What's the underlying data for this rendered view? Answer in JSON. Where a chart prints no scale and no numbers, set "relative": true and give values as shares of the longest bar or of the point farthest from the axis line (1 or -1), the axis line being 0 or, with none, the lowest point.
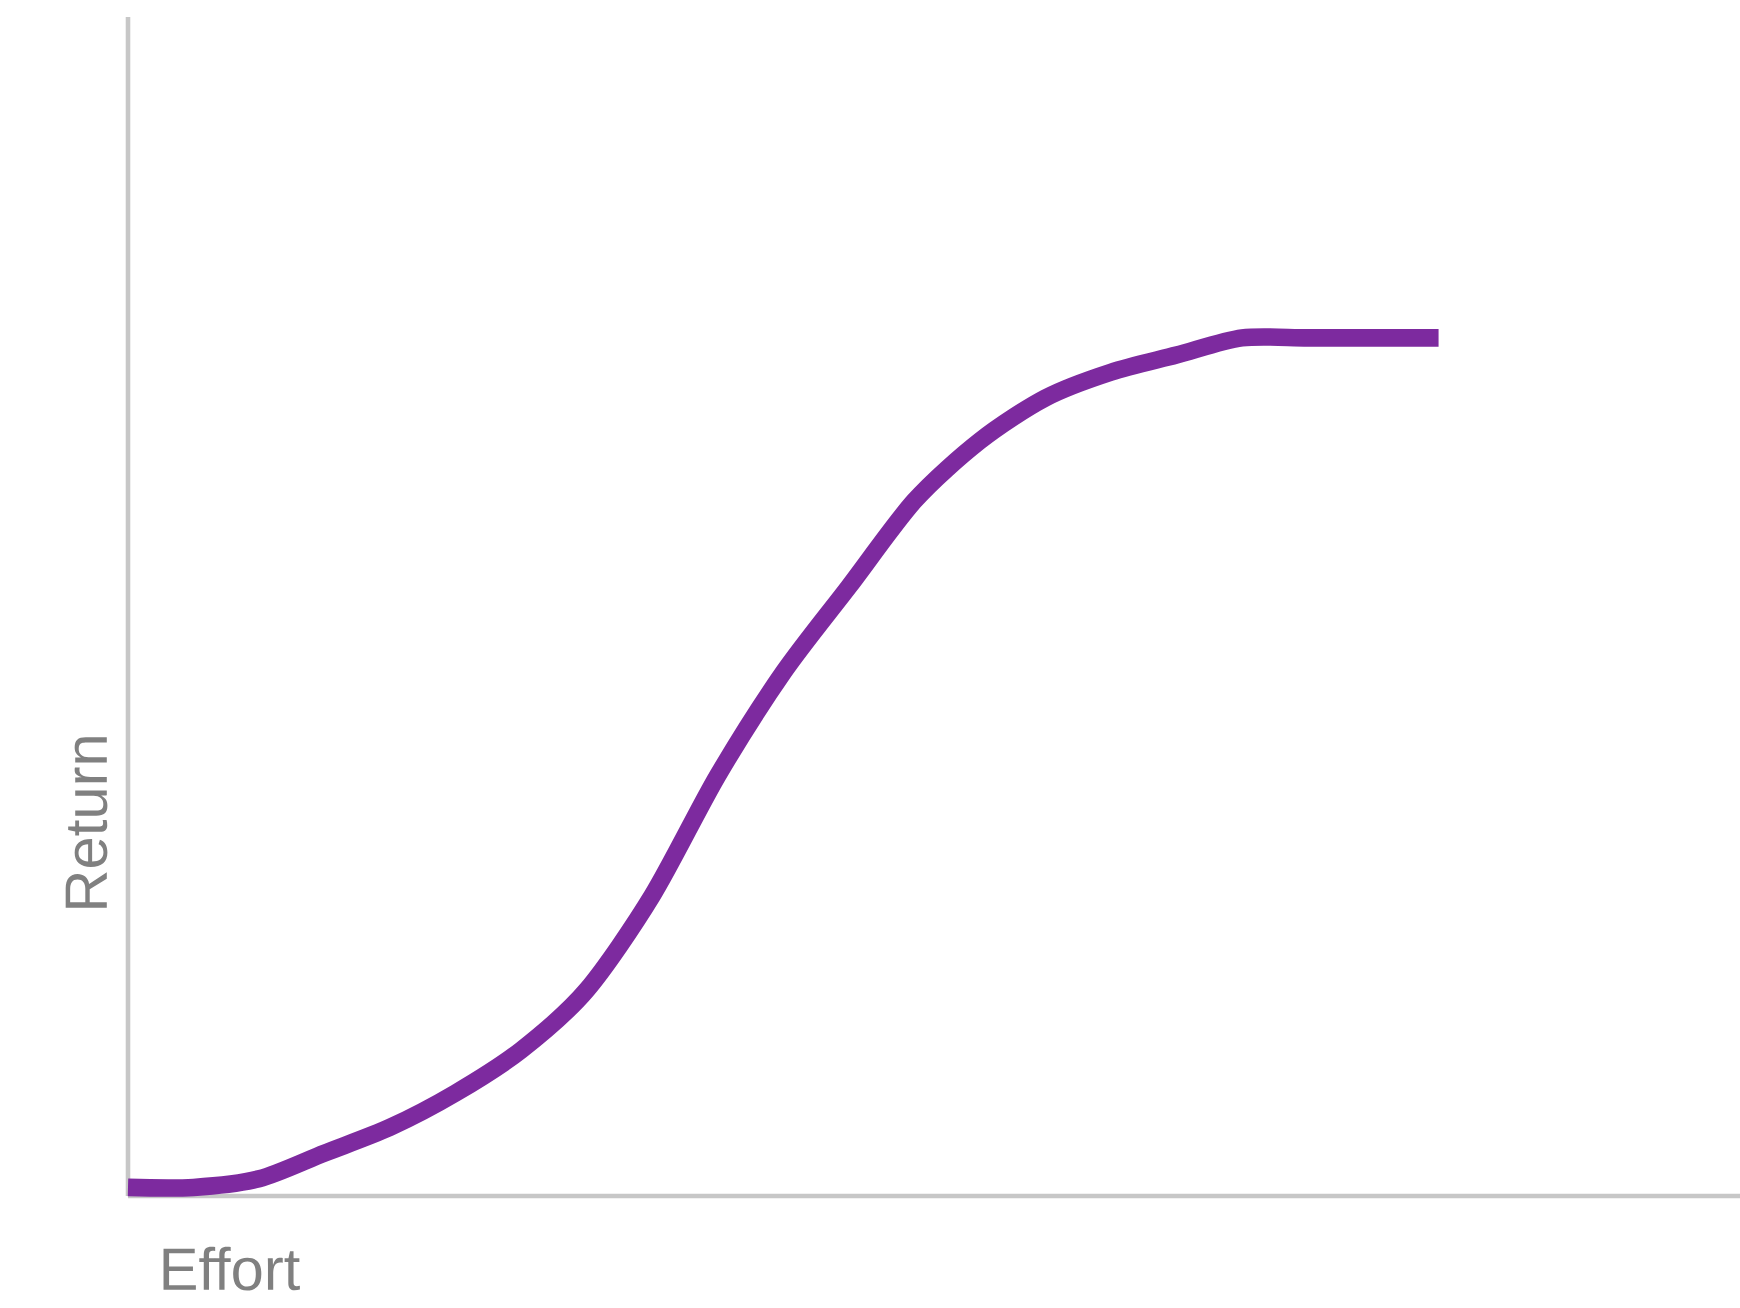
{
  "chart_data": {
    "type": "line",
    "xlabel": "Effort",
    "ylabel": "Return",
    "relative": true,
    "categories": [
      null,
      null,
      null,
      null,
      null,
      null,
      null,
      null,
      null,
      null,
      null,
      null,
      null,
      null,
      null,
      null,
      null,
      null,
      null,
      null,
      null,
      null,
      null,
      null,
      null
    ],
    "series": [
      {
        "color": "#7d2a9f",
        "values": [
          0.01,
          0.01,
          0.02,
          0.05,
          0.08,
          0.12,
          0.17,
          0.24,
          0.35,
          0.49,
          0.61,
          0.71,
          0.81,
          0.88,
          0.93,
          0.96,
          0.98,
          1.0,
          1.0,
          1.0,
          1.0,
          null,
          null,
          null,
          null
        ]
      }
    ]
  }
}
